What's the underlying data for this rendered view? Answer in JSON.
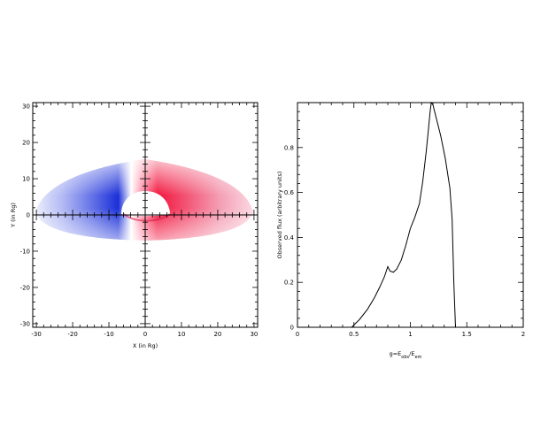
{
  "chart_data": [
    {
      "type": "heatmap",
      "description_text": "",
      "xlabel": "X (in Rg)",
      "ylabel": "Y (in Rg)",
      "xlim": [
        -31,
        31
      ],
      "ylim": [
        -31,
        31
      ],
      "xticks": [
        -30,
        -20,
        -10,
        0,
        10,
        20,
        30
      ],
      "yticks": [
        -30,
        -20,
        -10,
        0,
        10,
        20,
        30
      ],
      "disk": {
        "inner_radius_rg": 6,
        "outer_radius_rg": 30,
        "inclination_deg": 60,
        "colors": {
          "approaching": "#1a2fd8",
          "receding": "#f2153d",
          "neutral": "#ffffff"
        }
      },
      "grid": false
    },
    {
      "type": "line",
      "xlabel": "g=E_obs/E_em",
      "xlabel_parts": {
        "main": "g=E",
        "sub1": "obs",
        "mid": "/E",
        "sub2": "em"
      },
      "ylabel": "Observed flux (arbitrary units)",
      "xlim": [
        0,
        2
      ],
      "ylim": [
        0,
        1
      ],
      "xticks": [
        0,
        0.5,
        1,
        1.5,
        2
      ],
      "xtick_labels": [
        "0",
        "0.5",
        "1",
        "1.5",
        "2"
      ],
      "yticks": [
        0,
        0.2,
        0.4,
        0.6,
        0.8
      ],
      "ytick_labels": [
        "0",
        "0.2",
        "0.4",
        "0.6",
        "0.8"
      ],
      "series": [
        {
          "x": [
            0.48,
            0.55,
            0.62,
            0.68,
            0.73,
            0.77,
            0.79,
            0.8,
            0.82,
            0.85,
            0.88,
            0.92,
            0.96,
            1.0,
            1.04,
            1.08,
            1.11,
            1.14,
            1.16,
            1.175,
            1.185,
            1.2,
            1.23,
            1.27,
            1.31,
            1.35,
            1.37,
            1.385,
            1.4
          ],
          "y": [
            0.0,
            0.035,
            0.08,
            0.13,
            0.18,
            0.225,
            0.255,
            0.27,
            0.25,
            0.245,
            0.26,
            0.3,
            0.365,
            0.44,
            0.49,
            0.55,
            0.65,
            0.78,
            0.88,
            0.96,
            1.0,
            0.99,
            0.93,
            0.85,
            0.75,
            0.62,
            0.48,
            0.2,
            0.0
          ]
        }
      ],
      "grid": false
    }
  ]
}
